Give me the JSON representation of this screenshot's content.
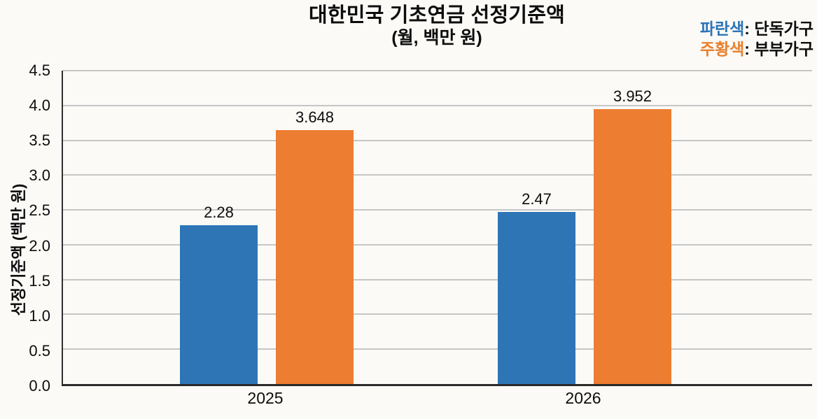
{
  "title": "대한민국 기초연금 선정기준액",
  "subtitle": "(월, 백만 원)",
  "legend": {
    "items": [
      {
        "color_word": "파란색",
        "rest": ": 단독가구",
        "color": "#2e75b6"
      },
      {
        "color_word": "주황색",
        "rest": ": 부부가구",
        "color": "#e8802d"
      }
    ]
  },
  "chart_data": {
    "type": "bar",
    "title": "대한민국 기초연금 선정기준액 (월, 백만 원)",
    "categories": [
      "2025",
      "2026"
    ],
    "series": [
      {
        "name": "단독가구",
        "color": "#2e75b6",
        "values": [
          2.28,
          2.47
        ],
        "data_labels": [
          "2.28",
          "2.47"
        ]
      },
      {
        "name": "부부가구",
        "color": "#ed7d31",
        "values": [
          3.648,
          3.952
        ],
        "data_labels": [
          "3.648",
          "3.952"
        ]
      }
    ],
    "xlabel": "",
    "ylabel": "선정기준액 (백만 원)",
    "ylim": [
      0,
      4.5
    ],
    "yticks": [
      "0.0",
      "0.5",
      "1.0",
      "1.5",
      "2.0",
      "2.5",
      "3.0",
      "3.5",
      "4.0",
      "4.5"
    ],
    "grid": true,
    "legend_position": "top-right"
  },
  "colors": {
    "background": "#fbfaf7",
    "grid": "#c6c6c6",
    "axis": "#2a2a2a",
    "text": "#0d0d0d"
  }
}
